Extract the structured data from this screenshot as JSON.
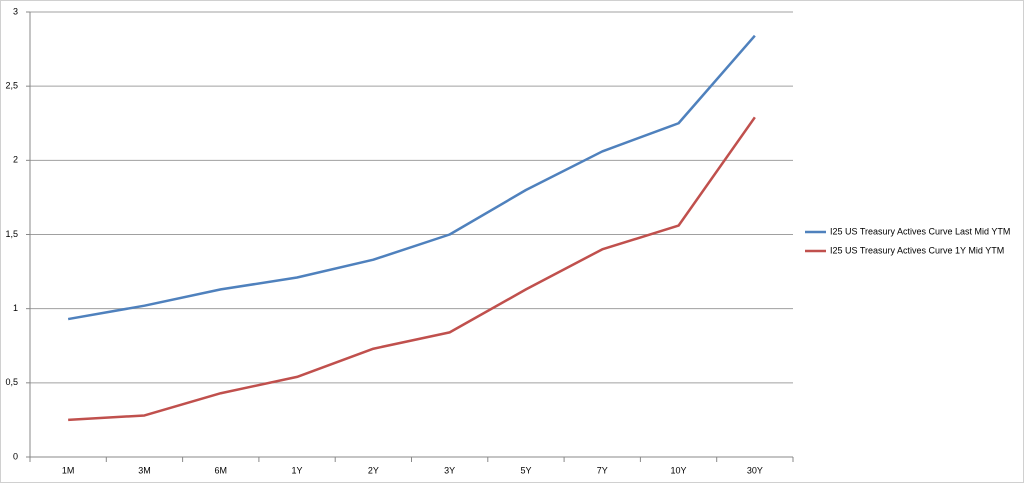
{
  "chart_data": {
    "type": "line",
    "categories": [
      "1M",
      "3M",
      "6M",
      "1Y",
      "2Y",
      "3Y",
      "5Y",
      "7Y",
      "10Y",
      "30Y"
    ],
    "series": [
      {
        "name": "I25 US Treasury Actives Curve Last Mid YTM",
        "color": "#4f81bd",
        "values": [
          0.93,
          1.02,
          1.13,
          1.21,
          1.33,
          1.5,
          1.8,
          2.06,
          2.25,
          2.84
        ]
      },
      {
        "name": "I25 US Treasury Actives Curve 1Y Mid YTM",
        "color": "#c0504d",
        "values": [
          0.25,
          0.28,
          0.43,
          0.54,
          0.73,
          0.84,
          1.13,
          1.4,
          1.56,
          2.29
        ]
      }
    ],
    "ylim": [
      0,
      3
    ],
    "yticks": [
      0,
      {
        "value": 0.5,
        "label": "0,5"
      },
      1,
      {
        "value": 1.5,
        "label": "1,5"
      },
      2,
      {
        "value": 2.5,
        "label": "2,5"
      },
      3
    ],
    "grid": true,
    "legend": "right"
  }
}
